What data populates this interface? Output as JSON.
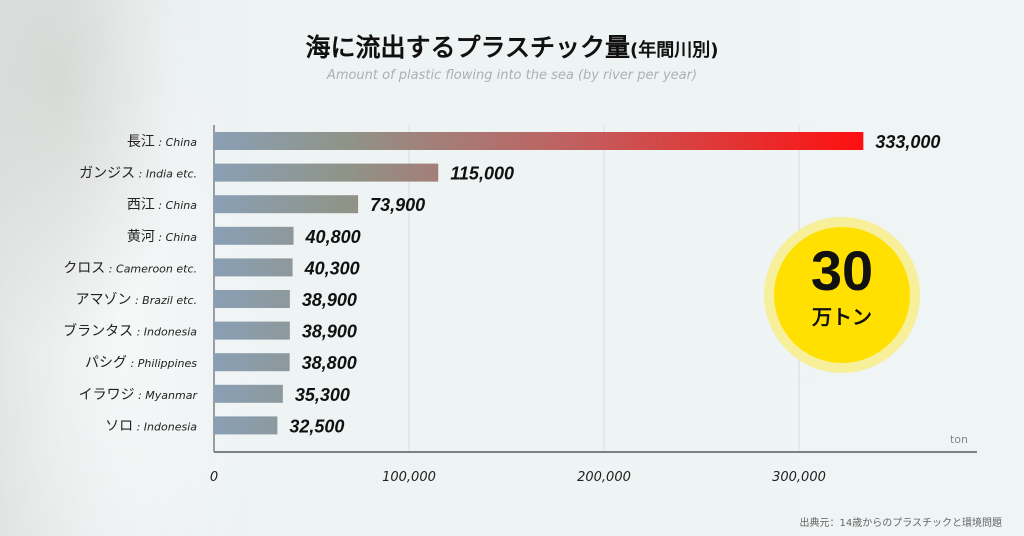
{
  "title": "海に流出するプラスチック量",
  "title_suffix": "(年間川別)",
  "subtitle": "Amount of plastic flowing into the sea (by river per year)",
  "badge": {
    "number": "30",
    "unit": "万トン",
    "color": "#ffe000"
  },
  "source": "出典元：14歳からのプラスチックと環境問題",
  "chart_data": {
    "type": "bar",
    "orientation": "horizontal",
    "title": "海に流出するプラスチック量(年間川別)",
    "categories": [
      {
        "jp": "長江",
        "en": ": China"
      },
      {
        "jp": "ガンジス",
        "en": ": India etc."
      },
      {
        "jp": "西江",
        "en": ": China"
      },
      {
        "jp": "黄河",
        "en": ": China"
      },
      {
        "jp": "クロス",
        "en": ": Cameroon etc."
      },
      {
        "jp": "アマゾン",
        "en": ": Brazil etc."
      },
      {
        "jp": "ブランタス",
        "en": ": Indonesia"
      },
      {
        "jp": "パシグ",
        "en": ": Philippines"
      },
      {
        "jp": "イラワジ",
        "en": ": Myanmar"
      },
      {
        "jp": "ソロ",
        "en": ": Indonesia"
      }
    ],
    "values": [
      333000,
      115000,
      73900,
      40800,
      40300,
      38900,
      38900,
      38800,
      35300,
      32500
    ],
    "value_labels": [
      "333,000",
      "115,000",
      "73,900",
      "40,800",
      "40,300",
      "38,900",
      "38,900",
      "38,800",
      "35,300",
      "32,500"
    ],
    "xlim": [
      0,
      390000
    ],
    "xticks": [
      0,
      100000,
      200000,
      300000
    ],
    "xtick_labels": [
      "0",
      "100,000",
      "200,000",
      "300,000"
    ],
    "xlabel": "ton",
    "grid": true,
    "colors": {
      "low": "#8a9fb5",
      "high": "#ff0f0f"
    }
  }
}
